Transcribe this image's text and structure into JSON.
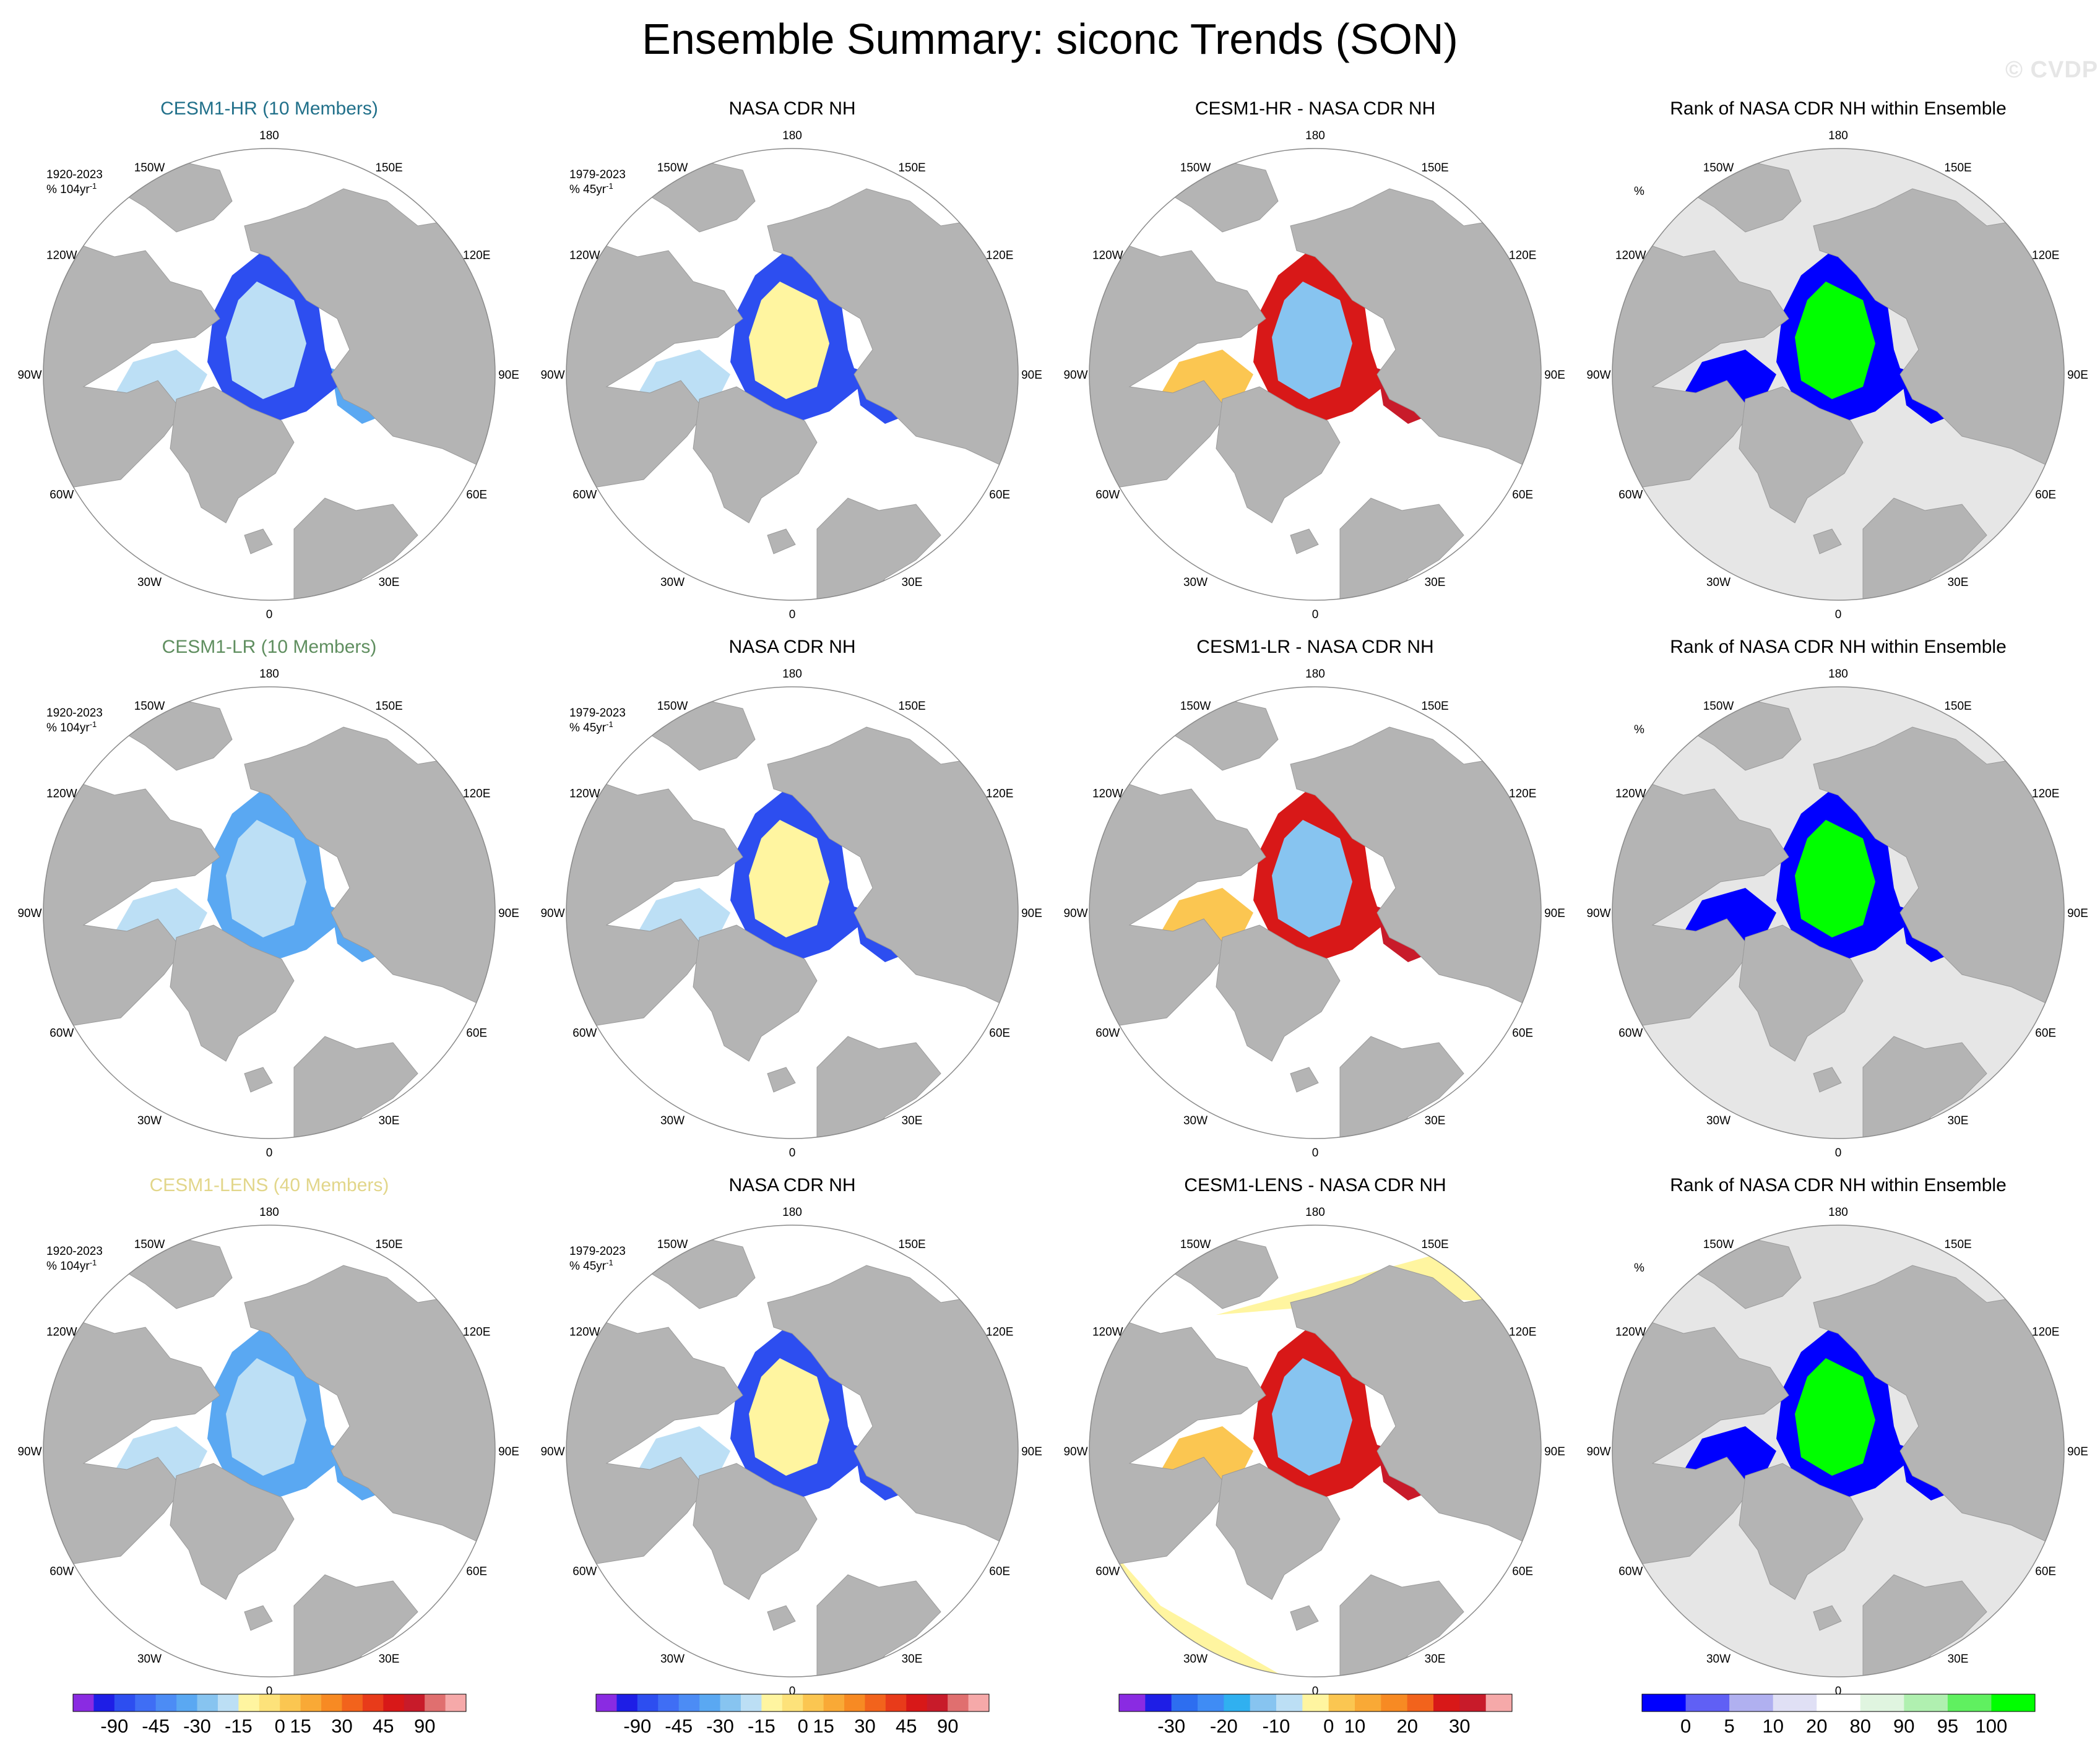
{
  "figure_title": "Ensemble Summary: siconc Trends (SON)",
  "watermark": "© CVDP",
  "colors": {
    "land": "#b4b4b4",
    "background": "#ffffff",
    "rank_background": "#e6e6e6",
    "hr_label": "#21708a",
    "lr_label": "#5f8e5f",
    "lens_label": "#e2d68a"
  },
  "longitude_labels": [
    "180",
    "150E",
    "120E",
    "90E",
    "60E",
    "30E",
    "0",
    "30W",
    "60W",
    "90W",
    "120W",
    "150W"
  ],
  "chart_data": {
    "type": "polar_stereographic_map_panels",
    "rows": [
      {
        "ensemble": "CESM1-HR (10 Members)",
        "ensemble_color": "#21708a",
        "model_annotation": [
          "1920-2023",
          "% 104yr"
        ],
        "panels": [
          {
            "title": "CESM1-HR (10 Members)",
            "kind": "trend",
            "annotation": [
              "1920-2023",
              "% 104yr",
              "-1"
            ]
          },
          {
            "title": "NASA CDR NH",
            "kind": "trend",
            "annotation": [
              "1979-2023",
              "% 45yr",
              "-1"
            ]
          },
          {
            "title": "CESM1-HR - NASA CDR NH",
            "kind": "difference",
            "annotation": []
          },
          {
            "title": "Rank of NASA CDR NH within Ensemble",
            "kind": "rank",
            "annotation": [
              "%"
            ]
          }
        ]
      },
      {
        "ensemble": "CESM1-LR (10 Members)",
        "ensemble_color": "#5f8e5f",
        "panels": [
          {
            "title": "CESM1-LR (10 Members)",
            "kind": "trend",
            "annotation": [
              "1920-2023",
              "% 104yr",
              "-1"
            ]
          },
          {
            "title": "NASA CDR NH",
            "kind": "trend",
            "annotation": [
              "1979-2023",
              "% 45yr",
              "-1"
            ]
          },
          {
            "title": "CESM1-LR - NASA CDR NH",
            "kind": "difference",
            "annotation": []
          },
          {
            "title": "Rank of NASA CDR NH within Ensemble",
            "kind": "rank",
            "annotation": [
              "%"
            ]
          }
        ]
      },
      {
        "ensemble": "CESM1-LENS (40 Members)",
        "ensemble_color": "#e2d68a",
        "panels": [
          {
            "title": "CESM1-LENS (40 Members)",
            "kind": "trend",
            "annotation": [
              "1920-2023",
              "% 104yr",
              "-1"
            ]
          },
          {
            "title": "NASA CDR NH",
            "kind": "trend",
            "annotation": [
              "1979-2023",
              "% 45yr",
              "-1"
            ]
          },
          {
            "title": "CESM1-LENS - NASA CDR NH",
            "kind": "difference",
            "annotation": []
          },
          {
            "title": "Rank of NASA CDR NH within Ensemble",
            "kind": "rank",
            "annotation": [
              "%"
            ]
          }
        ]
      }
    ],
    "colorbars": [
      {
        "name": "model trend",
        "tick_labels": [
          "-90",
          "-45",
          "-30",
          "-15",
          "0",
          "15",
          "30",
          "45",
          "90"
        ],
        "colors": [
          "#8a2be2",
          "#1e1ee6",
          "#2d4ef0",
          "#3f6ef5",
          "#4c8cf5",
          "#5aa8f2",
          "#87c4f0",
          "#bcdff5",
          "#fff5a0",
          "#fde27a",
          "#fbc651",
          "#f9a936",
          "#f78a23",
          "#f2631c",
          "#e83b1a",
          "#d81818",
          "#c81b2a",
          "#e06f6f",
          "#f6a9a9"
        ]
      },
      {
        "name": "observed trend",
        "tick_labels": [
          "-90",
          "-45",
          "-30",
          "-15",
          "0",
          "15",
          "30",
          "45",
          "90"
        ],
        "colors": [
          "#8a2be2",
          "#1e1ee6",
          "#2d4ef0",
          "#3f6ef5",
          "#4c8cf5",
          "#5aa8f2",
          "#87c4f0",
          "#bcdff5",
          "#fff5a0",
          "#fde27a",
          "#fbc651",
          "#f9a936",
          "#f78a23",
          "#f2631c",
          "#e83b1a",
          "#d81818",
          "#c81b2a",
          "#e06f6f",
          "#f6a9a9"
        ]
      },
      {
        "name": "difference",
        "tick_labels": [
          "-30",
          "-20",
          "-10",
          "0",
          "10",
          "20",
          "30"
        ],
        "colors": [
          "#8a2be2",
          "#1e1ee6",
          "#2d6ef0",
          "#3f8cf5",
          "#30b0f0",
          "#87c4f0",
          "#bcdff5",
          "#fff5a0",
          "#fbc651",
          "#f9a936",
          "#f78a23",
          "#f2631c",
          "#d81818",
          "#c81b2a",
          "#f6a9a9"
        ]
      },
      {
        "name": "rank",
        "tick_labels": [
          "0",
          "5",
          "10",
          "20",
          "80",
          "90",
          "95",
          "100"
        ],
        "colors": [
          "#0000ff",
          "#6060f5",
          "#b0b0f0",
          "#e0e0f5",
          "#ffffff",
          "#e0f5e0",
          "#b0f0b0",
          "#60f060",
          "#00ff00"
        ]
      }
    ]
  }
}
